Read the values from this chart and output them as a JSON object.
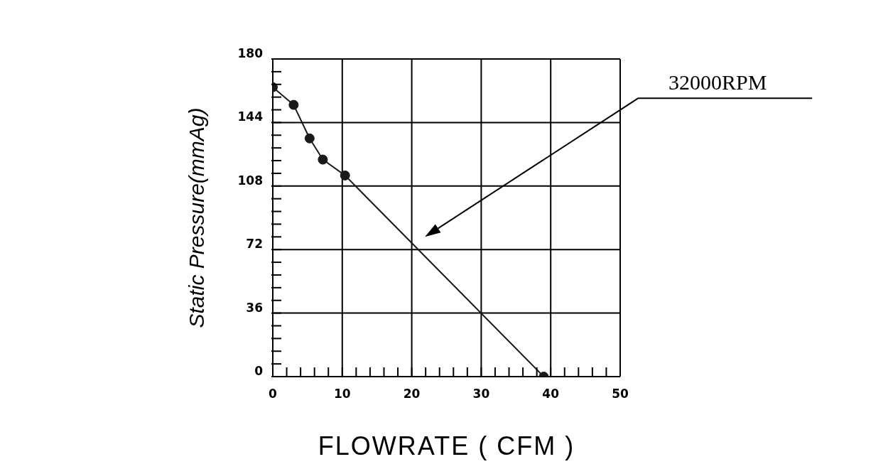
{
  "chart_data": {
    "type": "line",
    "xlabel": "FLOWRATE ( CFM )",
    "ylabel": "Static Pressure(mmAg)",
    "x": [
      0,
      3,
      5.3,
      7.2,
      10.4,
      39
    ],
    "series": [
      {
        "color": "#1a1a1a",
        "values": [
          164,
          154,
          135,
          123,
          114,
          0
        ]
      }
    ],
    "xlim": [
      0,
      50
    ],
    "xticks": [
      0,
      {
        "value": 2,
        "label": null
      },
      {
        "value": 4,
        "label": null
      },
      {
        "value": 6,
        "label": null
      },
      {
        "value": 8,
        "label": null
      },
      10,
      {
        "value": 12,
        "label": null
      },
      {
        "value": 14,
        "label": null
      },
      {
        "value": 16,
        "label": null
      },
      {
        "value": 18,
        "label": null
      },
      20,
      {
        "value": 22,
        "label": null
      },
      {
        "value": 24,
        "label": null
      },
      {
        "value": 26,
        "label": null
      },
      {
        "value": 28,
        "label": null
      },
      30,
      {
        "value": 32,
        "label": null
      },
      {
        "value": 34,
        "label": null
      },
      {
        "value": 36,
        "label": null
      },
      {
        "value": 38,
        "label": null
      },
      40,
      {
        "value": 42,
        "label": null
      },
      {
        "value": 44,
        "label": null
      },
      {
        "value": 46,
        "label": null
      },
      {
        "value": 48,
        "label": null
      },
      50
    ],
    "ylim": [
      0,
      180
    ],
    "yticks": [
      0,
      {
        "value": 7.2,
        "label": null
      },
      {
        "value": 14.4,
        "label": null
      },
      {
        "value": 21.6,
        "label": null
      },
      {
        "value": 28.8,
        "label": null
      },
      36,
      {
        "value": 43.2,
        "label": null
      },
      {
        "value": 50.4,
        "label": null
      },
      {
        "value": 57.6,
        "label": null
      },
      {
        "value": 64.8,
        "label": null
      },
      72,
      {
        "value": 79.2,
        "label": null
      },
      {
        "value": 86.4,
        "label": null
      },
      {
        "value": 93.6,
        "label": null
      },
      {
        "value": 100.8,
        "label": null
      },
      108,
      {
        "value": 115.2,
        "label": null
      },
      {
        "value": 122.4,
        "label": null
      },
      {
        "value": 129.6,
        "label": null
      },
      {
        "value": 136.8,
        "label": null
      },
      144,
      {
        "value": 151.2,
        "label": null
      },
      {
        "value": 158.4,
        "label": null
      },
      {
        "value": 165.6,
        "label": null
      },
      {
        "value": 172.8,
        "label": null
      },
      180
    ],
    "grid": true,
    "marker": "circle",
    "line_style": "solid",
    "annotations": [
      "32000RPM"
    ]
  }
}
